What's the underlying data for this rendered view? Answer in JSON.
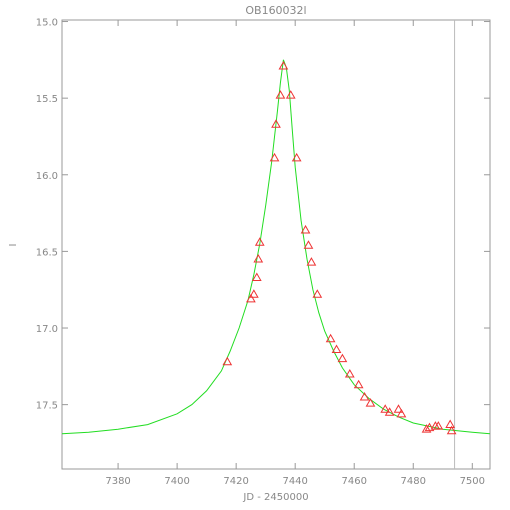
{
  "chart_data": {
    "type": "scatter",
    "title": "OB160032l",
    "xlabel": "JD - 2450000",
    "ylabel": "I",
    "xlim": [
      7361,
      7506
    ],
    "ylim": [
      17.92,
      14.99
    ],
    "y_inverted": true,
    "x_ticks": [
      7380,
      7400,
      7420,
      7440,
      7460,
      7480,
      7500
    ],
    "x_tick_labels": [
      "7380",
      "7400",
      "7420",
      "7440",
      "7460",
      "7480",
      "7500"
    ],
    "y_ticks": [
      15.0,
      15.5,
      16.0,
      16.5,
      17.0,
      17.5
    ],
    "y_tick_labels": [
      "15.0",
      "15.5",
      "16.0",
      "16.5",
      "17.0",
      "17.5"
    ],
    "grid": false,
    "vertical_marker_x": 7494,
    "colors": {
      "frame": "#999999",
      "model": "#22dd22",
      "points": "#ee3333",
      "marker_line": "#bbbbbb"
    },
    "series": [
      {
        "kind": "model-curve",
        "points": [
          [
            7361,
            17.69
          ],
          [
            7370,
            17.68
          ],
          [
            7380,
            17.66
          ],
          [
            7390,
            17.63
          ],
          [
            7400,
            17.56
          ],
          [
            7405,
            17.5
          ],
          [
            7410,
            17.41
          ],
          [
            7415,
            17.28
          ],
          [
            7418,
            17.15
          ],
          [
            7421,
            17.0
          ],
          [
            7424,
            16.82
          ],
          [
            7426,
            16.65
          ],
          [
            7428,
            16.45
          ],
          [
            7430,
            16.2
          ],
          [
            7432,
            15.92
          ],
          [
            7434,
            15.58
          ],
          [
            7435,
            15.4
          ],
          [
            7436,
            15.25
          ],
          [
            7437,
            15.3
          ],
          [
            7438,
            15.45
          ],
          [
            7439,
            15.7
          ],
          [
            7440,
            15.95
          ],
          [
            7442,
            16.3
          ],
          [
            7444,
            16.55
          ],
          [
            7446,
            16.75
          ],
          [
            7448,
            16.9
          ],
          [
            7450,
            17.02
          ],
          [
            7453,
            17.15
          ],
          [
            7456,
            17.26
          ],
          [
            7460,
            17.37
          ],
          [
            7465,
            17.46
          ],
          [
            7470,
            17.53
          ],
          [
            7475,
            17.58
          ],
          [
            7480,
            17.62
          ],
          [
            7485,
            17.64
          ],
          [
            7490,
            17.66
          ],
          [
            7495,
            17.67
          ],
          [
            7500,
            17.68
          ],
          [
            7506,
            17.69
          ]
        ]
      },
      {
        "kind": "observations",
        "points": [
          [
            7417,
            17.22
          ],
          [
            7425,
            16.81
          ],
          [
            7426,
            16.78
          ],
          [
            7427,
            16.67
          ],
          [
            7427.5,
            16.55
          ],
          [
            7428,
            16.44
          ],
          [
            7433,
            15.89
          ],
          [
            7433.5,
            15.67
          ],
          [
            7435,
            15.48
          ],
          [
            7436,
            15.29
          ],
          [
            7438.5,
            15.48
          ],
          [
            7440.5,
            15.89
          ],
          [
            7443.5,
            16.36
          ],
          [
            7444.5,
            16.46
          ],
          [
            7445.5,
            16.57
          ],
          [
            7447.5,
            16.78
          ],
          [
            7452,
            17.07
          ],
          [
            7454,
            17.14
          ],
          [
            7456,
            17.2
          ],
          [
            7458.5,
            17.3
          ],
          [
            7461.5,
            17.37
          ],
          [
            7463.5,
            17.45
          ],
          [
            7465.5,
            17.49
          ],
          [
            7470.5,
            17.53
          ],
          [
            7472,
            17.55
          ],
          [
            7475,
            17.53
          ],
          [
            7476,
            17.56
          ],
          [
            7484.5,
            17.66
          ],
          [
            7485.5,
            17.65
          ],
          [
            7487.5,
            17.64
          ],
          [
            7488.5,
            17.64
          ],
          [
            7492.5,
            17.63
          ],
          [
            7493,
            17.67
          ]
        ]
      }
    ]
  }
}
